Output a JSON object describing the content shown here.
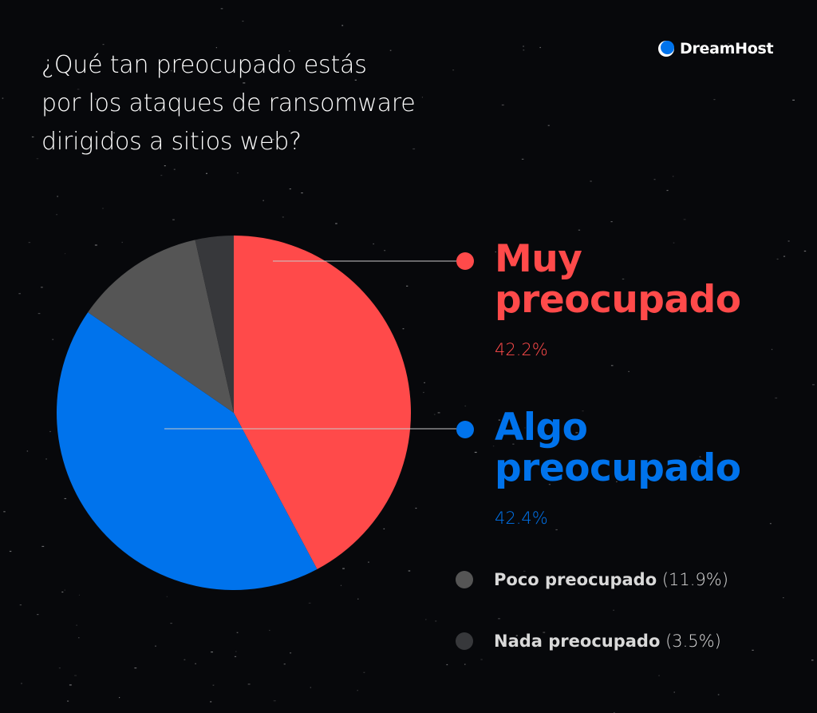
{
  "brand": {
    "name": "DreamHost",
    "logo_color": "#0073ec"
  },
  "title_lines": [
    "¿Qué tan preocupado estás",
    "por los ataques de ransomware",
    "dirigidos a sitios web?"
  ],
  "legend": {
    "muy": {
      "line1": "Muy",
      "line2": "preocupado",
      "pct": "42.2%",
      "color": "#ff4a4a"
    },
    "algo": {
      "line1": "Algo",
      "line2": "preocupado",
      "pct": "42.4%",
      "color": "#0073ec"
    },
    "poco": {
      "label": "Poco preocupado",
      "pct": "(11.9%)",
      "color": "#555555"
    },
    "nada": {
      "label": "Nada preocupado",
      "pct": "(3.5%)",
      "color": "#37383b"
    }
  },
  "chart_data": {
    "type": "pie",
    "title": "¿Qué tan preocupado estás por los ataques de ransomware dirigidos a sitios web?",
    "categories": [
      "Muy preocupado",
      "Algo preocupado",
      "Poco preocupado",
      "Nada preocupado"
    ],
    "values": [
      42.2,
      42.4,
      11.9,
      3.5
    ],
    "colors": [
      "#ff4a4a",
      "#0073ec",
      "#555555",
      "#37383b"
    ],
    "start_angle_deg": 0,
    "direction": "clockwise",
    "legend_position": "right"
  }
}
